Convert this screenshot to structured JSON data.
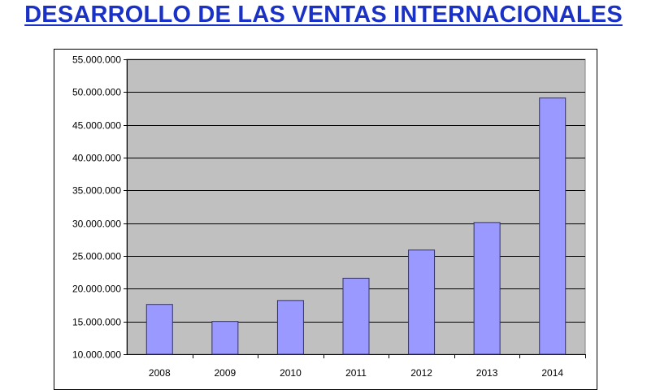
{
  "title": "DESARROLLO DE LAS VENTAS INTERNACIONALES",
  "chart_data": {
    "type": "bar",
    "title": "DESARROLLO DE LAS VENTAS INTERNACIONALES",
    "categories": [
      "2008",
      "2009",
      "2010",
      "2011",
      "2012",
      "2013",
      "2014"
    ],
    "values": [
      17600000,
      15000000,
      18200000,
      21600000,
      25900000,
      30100000,
      49100000
    ],
    "xlabel": "",
    "ylabel": "",
    "ylim": [
      10000000,
      55000000
    ],
    "yticks": [
      "10.000.000",
      "15.000.000",
      "20.000.000",
      "25.000.000",
      "30.000.000",
      "35.000.000",
      "40.000.000",
      "45.000.000",
      "50.000.000",
      "55.000.000"
    ],
    "grid": true,
    "legend": "none",
    "colors": {
      "bar_fill": "#9999ff",
      "bar_stroke": "#333366",
      "plot_background": "#c0c0c0",
      "title": "#1a31c8"
    }
  }
}
